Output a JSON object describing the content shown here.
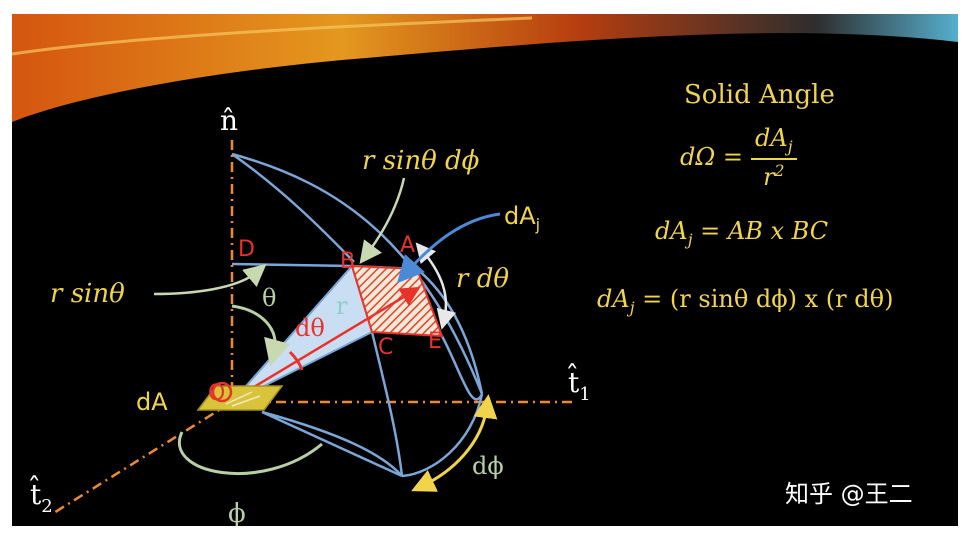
{
  "labels": {
    "n_axis": "n̂",
    "t1_axis": "t̂",
    "t1_sub": "1",
    "t2_axis": "t̂",
    "t2_sub": "2",
    "top_arc_label": "r sinθ dϕ",
    "dAj_label": "dA",
    "dAj_sub": "j",
    "r_sin_label": "r sinθ",
    "r_dtheta_label": "r dθ",
    "theta": "θ",
    "dtheta": "dθ",
    "r": "r",
    "D": "D",
    "B": "B",
    "A": "A",
    "C": "C",
    "E": "E",
    "O": "O",
    "dA": "dA",
    "dphi": "dϕ",
    "phi": "ϕ"
  },
  "equations": {
    "title": "Solid Angle",
    "eq1_lhs": "dΩ =",
    "eq1_num": "dA",
    "eq1_num_sub": "j",
    "eq1_den": "r",
    "eq1_den_sup": "2",
    "eq2_lhs": "dA",
    "eq2_lhs_sub": "j",
    "eq2_rhs": " = AB x BC",
    "eq3_lhs": "dA",
    "eq3_lhs_sub": "j",
    "eq3_rhs": " = (r sinθ dϕ) x (r dθ)"
  },
  "watermark": "知乎 @王二",
  "colors": {
    "background": "#000000",
    "yellow": "#f2d44a",
    "red": "#e8322a",
    "orange": "#f08a30",
    "blue": "#7aa6d8",
    "light_blue": "#c9ddf3",
    "green": "#b8d0a4",
    "cyan": "#8ad0c8"
  }
}
